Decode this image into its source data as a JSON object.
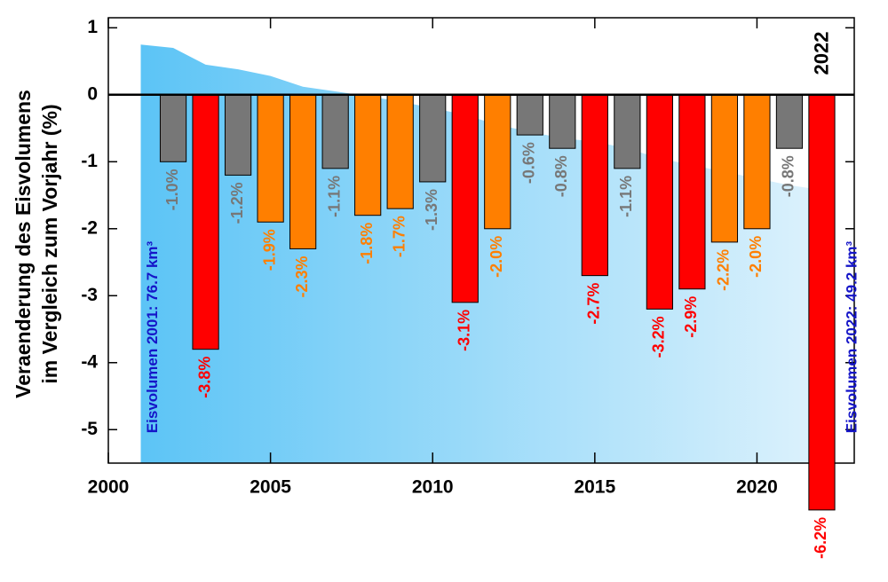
{
  "chart_data": {
    "type": "bar",
    "y_label_lines": [
      "Veraenderung des Eisvolumens",
      "im Vergleich zum Vorjahr (%)"
    ],
    "x": [
      2002,
      2003,
      2004,
      2005,
      2006,
      2007,
      2008,
      2009,
      2010,
      2011,
      2012,
      2013,
      2014,
      2015,
      2016,
      2017,
      2018,
      2019,
      2020,
      2021,
      2022
    ],
    "values": [
      -1.0,
      -3.8,
      -1.2,
      -1.9,
      -2.3,
      -1.1,
      -1.8,
      -1.7,
      -1.3,
      -3.1,
      -2.0,
      -0.6,
      -0.8,
      -2.7,
      -1.1,
      -3.2,
      -2.9,
      -2.2,
      -2.0,
      -0.8,
      -6.2
    ],
    "value_labels": [
      "-1.0%",
      "-3.8%",
      "-1.2%",
      "-1.9%",
      "-2.3%",
      "-1.1%",
      "-1.8%",
      "-1.7%",
      "-1.3%",
      "-3.1%",
      "-2.0%",
      "-0.6%",
      "-0.8%",
      "-2.7%",
      "-1.1%",
      "-3.2%",
      "-2.9%",
      "-2.2%",
      "-2.0%",
      "-0.8%",
      "-6.2%"
    ],
    "colors": [
      "#777777",
      "#ff0000",
      "#777777",
      "#ff7f00",
      "#ff7f00",
      "#777777",
      "#ff7f00",
      "#ff7f00",
      "#777777",
      "#ff0000",
      "#ff7f00",
      "#777777",
      "#777777",
      "#ff0000",
      "#777777",
      "#ff0000",
      "#ff0000",
      "#ff7f00",
      "#ff7f00",
      "#777777",
      "#ff0000"
    ],
    "background_area": {
      "x": [
        2001,
        2002,
        2003,
        2004,
        2005,
        2006,
        2007,
        2008,
        2009,
        2010,
        2011,
        2012,
        2013,
        2014,
        2015,
        2016,
        2017,
        2018,
        2019,
        2020,
        2021,
        2021.7
      ],
      "values": [
        0.75,
        0.7,
        0.45,
        0.38,
        0.28,
        0.12,
        0.05,
        -0.02,
        -0.1,
        -0.2,
        -0.3,
        -0.45,
        -0.55,
        -0.65,
        -0.7,
        -0.8,
        -0.95,
        -1.05,
        -1.15,
        -1.25,
        -1.35,
        -1.4
      ]
    },
    "annotations": [
      "Eisvolumen 2001: 76.7 km³",
      "Eisvolumen 2022: 49.2 km³",
      "2022"
    ],
    "xlim": [
      2000,
      2023
    ],
    "ylim": [
      -5.5,
      1.15
    ],
    "xticks": [
      2000,
      2005,
      2010,
      2015,
      2020
    ],
    "yticks": [
      -5,
      -4,
      -3,
      -2,
      -1,
      0,
      1
    ]
  }
}
